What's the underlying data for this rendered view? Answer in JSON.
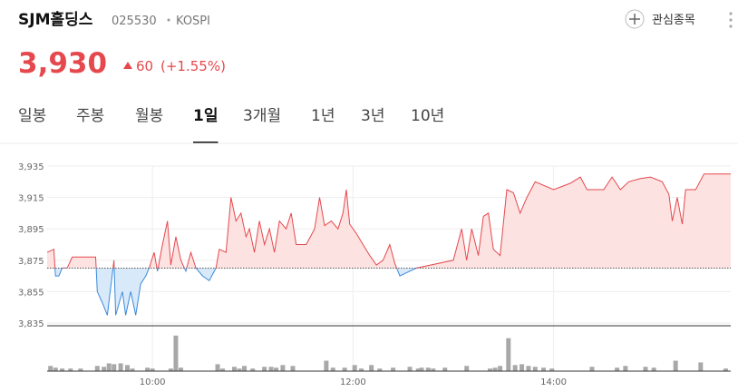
{
  "header": {
    "name": "SJM홀딩스",
    "code": "025530",
    "market": "KOSPI",
    "watch": "관심종목",
    "price": "3,930",
    "change": "60",
    "change_rate": "(+1.55%)"
  },
  "tabs": {
    "items": [
      "일봉",
      "주봉",
      "월봉",
      "1일",
      "3개월",
      "1년",
      "3년",
      "10년"
    ],
    "selected": 3
  },
  "chart_data": {
    "type": "line",
    "x": [
      -3,
      1,
      2,
      4,
      6,
      9,
      12,
      26,
      27,
      30,
      33,
      37,
      38,
      42,
      44,
      47,
      50,
      53,
      56,
      58,
      61,
      63,
      66,
      69,
      71,
      74,
      77,
      80,
      83,
      86,
      90,
      94,
      98,
      100,
      104,
      107,
      110,
      113,
      116,
      118,
      121,
      124,
      127,
      130,
      133,
      136,
      140,
      143,
      146,
      152,
      157,
      160,
      163,
      167,
      171,
      174,
      176,
      178,
      182,
      186,
      190,
      194,
      198,
      202,
      205,
      208,
      212,
      218,
      240,
      245,
      248,
      251,
      255,
      258,
      261,
      264,
      268,
      272,
      276,
      280,
      284,
      289,
      300,
      310,
      316,
      320,
      330,
      335,
      340,
      345,
      352,
      358,
      365,
      369,
      371,
      374,
      377,
      379,
      385,
      390,
      406
    ],
    "series": [
      {
        "name": "SJM홀딩스",
        "color": "#e5484d",
        "below_color": "#3b8ad9",
        "values": [
          3880,
          3882,
          3865,
          3865,
          3870,
          3870,
          3877,
          3877,
          3855,
          3848,
          3840,
          3875,
          3840,
          3855,
          3840,
          3855,
          3840,
          3860,
          3865,
          3870,
          3880,
          3868,
          3885,
          3900,
          3872,
          3890,
          3875,
          3868,
          3880,
          3870,
          3865,
          3862,
          3870,
          3882,
          3880,
          3915,
          3900,
          3905,
          3890,
          3895,
          3880,
          3900,
          3885,
          3895,
          3880,
          3900,
          3895,
          3905,
          3885,
          3885,
          3895,
          3915,
          3897,
          3900,
          3895,
          3905,
          3920,
          3898,
          3892,
          3885,
          3878,
          3872,
          3875,
          3885,
          3873,
          3865,
          3867,
          3870,
          3875,
          3895,
          3875,
          3895,
          3878,
          3903,
          3905,
          3882,
          3878,
          3920,
          3918,
          3905,
          3915,
          3925,
          3920,
          3924,
          3928,
          3920,
          3920,
          3928,
          3920,
          3925,
          3927,
          3928,
          3925,
          3917,
          3900,
          3915,
          3898,
          3920,
          3920,
          3930,
          3930
        ]
      }
    ],
    "baseline": 3870,
    "xlim": [
      -3,
      406
    ],
    "xticks": [
      {
        "value": 60,
        "label": "10:00"
      },
      {
        "value": 180,
        "label": "12:00"
      },
      {
        "value": 300,
        "label": "14:00"
      }
    ],
    "ylim": [
      3835,
      3935
    ],
    "yticks": [
      {
        "value": 3835,
        "label": "3,835"
      },
      {
        "value": 3855,
        "label": "3,855"
      },
      {
        "value": 3875,
        "label": "3,875"
      },
      {
        "value": 3895,
        "label": "3,895"
      },
      {
        "value": 3915,
        "label": "3,915"
      },
      {
        "value": 3935,
        "label": "3,935"
      }
    ],
    "grid": true,
    "volume": {
      "color": "#a8a8a8",
      "ylim": [
        0,
        45
      ],
      "x": [
        -1,
        2,
        6,
        11,
        17,
        27,
        31,
        34,
        37,
        41,
        45,
        48,
        57,
        60,
        71,
        74,
        77,
        99,
        102,
        109,
        112,
        115,
        120,
        127,
        131,
        134,
        138,
        144,
        164,
        168,
        175,
        181,
        185,
        191,
        196,
        204,
        214,
        219,
        221,
        225,
        228,
        235,
        248,
        262,
        265,
        268,
        273,
        277,
        281,
        285,
        289,
        294,
        299,
        323,
        338,
        343,
        355,
        360,
        373,
        388,
        403
      ],
      "values": [
        6,
        4,
        3,
        3,
        3,
        6,
        5,
        9,
        8,
        9,
        7,
        3,
        4,
        3,
        3,
        41,
        4,
        8,
        3,
        5,
        3,
        6,
        3,
        5,
        5,
        4,
        7,
        6,
        12,
        4,
        4,
        7,
        3,
        7,
        3,
        4,
        5,
        3,
        4,
        4,
        3,
        4,
        6,
        3,
        4,
        6,
        38,
        7,
        8,
        6,
        5,
        4,
        3,
        5,
        4,
        6,
        5,
        4,
        12,
        10,
        3
      ]
    }
  }
}
